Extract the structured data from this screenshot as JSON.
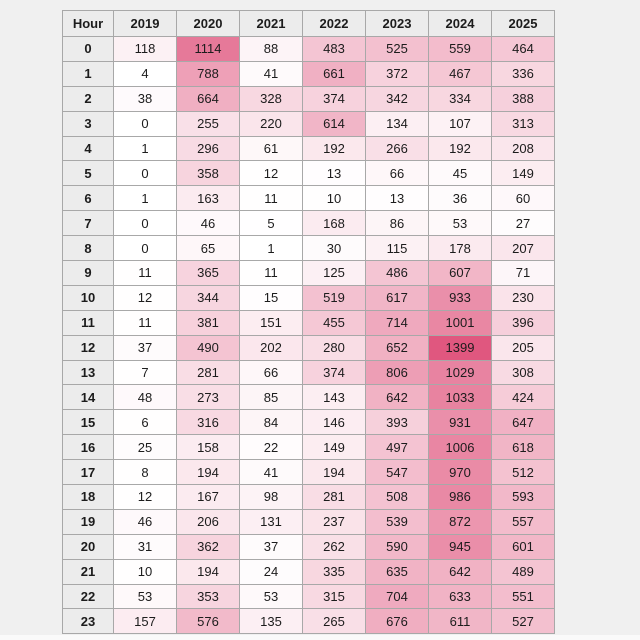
{
  "page": {
    "background_color": "#f0f0f0",
    "header_bg_color": "#ececec",
    "border_color": "#a8a8a8",
    "outer_border_color": "#8f8f8f",
    "text_color": "#1c1c1c"
  },
  "chart_data": {
    "type": "heatmap",
    "title": "",
    "columns": [
      "Hour",
      "2019",
      "2020",
      "2021",
      "2022",
      "2023",
      "2024",
      "2025"
    ],
    "row_label_column": "Hour",
    "rows": [
      {
        "hour": "0",
        "values": [
          118,
          1114,
          88,
          483,
          525,
          559,
          464
        ]
      },
      {
        "hour": "1",
        "values": [
          4,
          788,
          41,
          661,
          372,
          467,
          336
        ]
      },
      {
        "hour": "2",
        "values": [
          38,
          664,
          328,
          374,
          342,
          334,
          388
        ]
      },
      {
        "hour": "3",
        "values": [
          0,
          255,
          220,
          614,
          134,
          107,
          313
        ]
      },
      {
        "hour": "4",
        "values": [
          1,
          296,
          61,
          192,
          266,
          192,
          208
        ]
      },
      {
        "hour": "5",
        "values": [
          0,
          358,
          12,
          13,
          66,
          45,
          149
        ]
      },
      {
        "hour": "6",
        "values": [
          1,
          163,
          11,
          10,
          13,
          36,
          60
        ]
      },
      {
        "hour": "7",
        "values": [
          0,
          46,
          5,
          168,
          86,
          53,
          27
        ]
      },
      {
        "hour": "8",
        "values": [
          0,
          65,
          1,
          30,
          115,
          178,
          207
        ]
      },
      {
        "hour": "9",
        "values": [
          11,
          365,
          11,
          125,
          486,
          607,
          71
        ]
      },
      {
        "hour": "10",
        "values": [
          12,
          344,
          15,
          519,
          617,
          933,
          230
        ]
      },
      {
        "hour": "11",
        "values": [
          11,
          381,
          151,
          455,
          714,
          1001,
          396
        ]
      },
      {
        "hour": "12",
        "values": [
          37,
          490,
          202,
          280,
          652,
          1399,
          205
        ]
      },
      {
        "hour": "13",
        "values": [
          7,
          281,
          66,
          374,
          806,
          1029,
          308
        ]
      },
      {
        "hour": "14",
        "values": [
          48,
          273,
          85,
          143,
          642,
          1033,
          424
        ]
      },
      {
        "hour": "15",
        "values": [
          6,
          316,
          84,
          146,
          393,
          931,
          647
        ]
      },
      {
        "hour": "16",
        "values": [
          25,
          158,
          22,
          149,
          497,
          1006,
          618
        ]
      },
      {
        "hour": "17",
        "values": [
          8,
          194,
          41,
          194,
          547,
          970,
          512
        ]
      },
      {
        "hour": "18",
        "values": [
          12,
          167,
          98,
          281,
          508,
          986,
          593
        ]
      },
      {
        "hour": "19",
        "values": [
          46,
          206,
          131,
          237,
          539,
          872,
          557
        ]
      },
      {
        "hour": "20",
        "values": [
          31,
          362,
          37,
          262,
          590,
          945,
          601
        ]
      },
      {
        "hour": "21",
        "values": [
          10,
          194,
          24,
          335,
          635,
          642,
          489
        ]
      },
      {
        "hour": "22",
        "values": [
          53,
          353,
          53,
          315,
          704,
          633,
          551
        ]
      },
      {
        "hour": "23",
        "values": [
          157,
          576,
          135,
          265,
          676,
          611,
          527
        ]
      }
    ],
    "color_scale": {
      "min_value": 0,
      "max_value": 1399,
      "min_color": "#ffffff",
      "max_color": "#e0577f"
    },
    "legend_position": "none",
    "grid": true
  }
}
